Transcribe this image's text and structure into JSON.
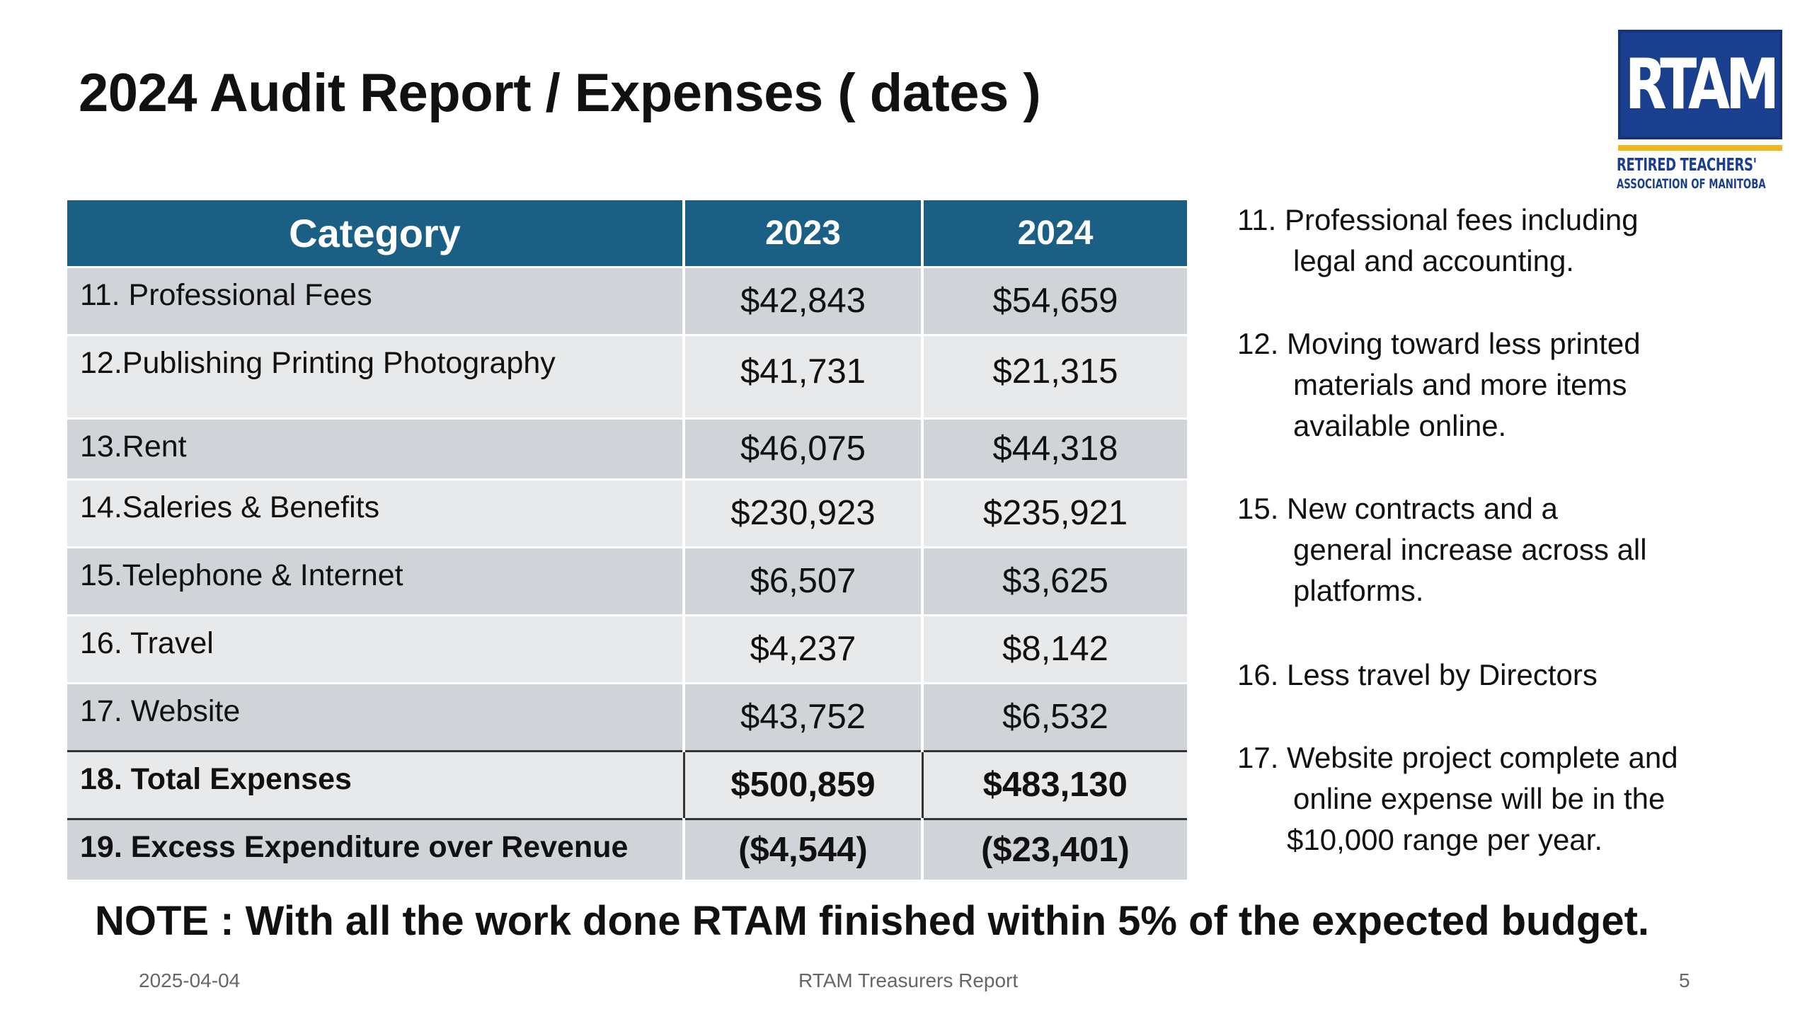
{
  "slide": {
    "title": "2024 Audit Report / Expenses ( dates )",
    "logo": {
      "letters": "RTAM",
      "line1": "RETIRED TEACHERS'",
      "line2": "ASSOCIATION OF MANITOBA",
      "colors": {
        "blue": "#1b3f8f",
        "gold": "#f0b61a"
      }
    }
  },
  "table": {
    "headers": {
      "category": "Category",
      "y2023": "2023",
      "y2024": "2024"
    },
    "header_color": "#1c5f84",
    "rows": [
      {
        "category": "11. Professional Fees",
        "y2023": "$42,843",
        "y2024": "$54,659"
      },
      {
        "category": "12.Publishing Printing Photography",
        "y2023": "$41,731",
        "y2024": "$21,315"
      },
      {
        "category": "13.Rent",
        "y2023": "$46,075",
        "y2024": "$44,318"
      },
      {
        "category": "14.Saleries & Benefits",
        "y2023": "$230,923",
        "y2024": "$235,921"
      },
      {
        "category": "15.Telephone & Internet",
        "y2023": "$6,507",
        "y2024": "$3,625"
      },
      {
        "category": "16. Travel",
        "y2023": "$4,237",
        "y2024": "$8,142"
      },
      {
        "category": "17. Website",
        "y2023": "$43,752",
        "y2024": "$6,532"
      }
    ],
    "total": {
      "category": "18. Total Expenses",
      "y2023": "$500,859",
      "y2024": "$483,130"
    },
    "excess": {
      "category": "19. Excess Expenditure over Revenue",
      "y2023": "($4,544)",
      "y2024": "($23,401)"
    }
  },
  "notes": [
    {
      "lines": [
        "11. Professional fees including",
        "legal and accounting."
      ]
    },
    {
      "lines": [
        "12. Moving toward less printed",
        "materials and more items",
        "available online."
      ]
    },
    {
      "lines": [
        "15. New contracts and a",
        "general increase across all",
        "platforms."
      ]
    },
    {
      "lines": [
        "16. Less travel by Directors"
      ]
    },
    {
      "lines": [
        "17. Website project complete and",
        "online expense will be in the",
        "$10,000  range per year."
      ]
    }
  ],
  "bottom_note": "NOTE : With all the work done RTAM finished within 5% of the expected budget.",
  "footer": {
    "date": "2025-04-04",
    "center": "RTAM Treasurers Report",
    "page": "5"
  }
}
